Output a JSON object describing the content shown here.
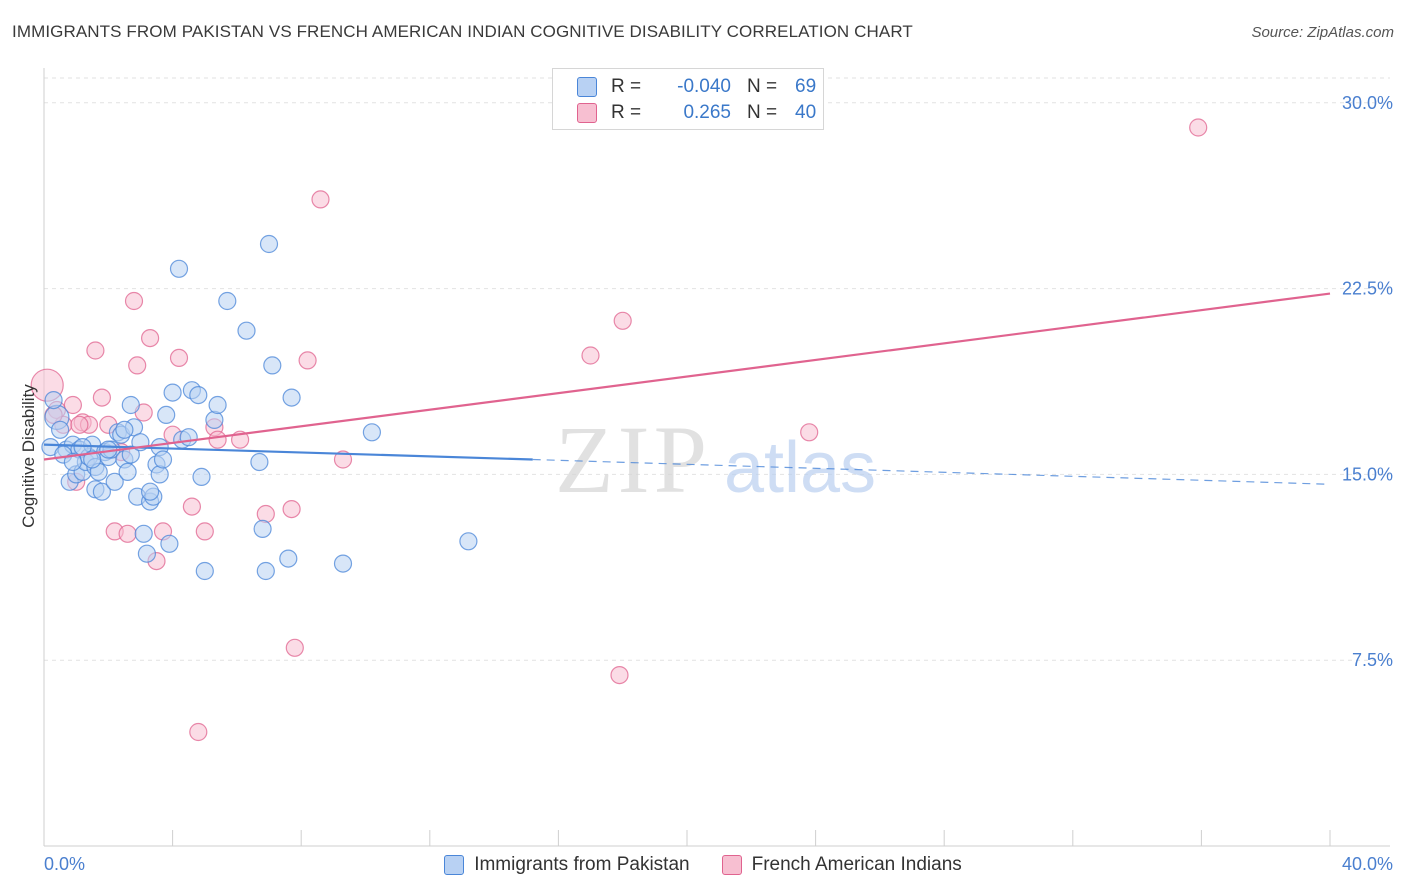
{
  "title": "IMMIGRANTS FROM PAKISTAN VS FRENCH AMERICAN INDIAN COGNITIVE DISABILITY CORRELATION CHART",
  "source": "Source: ZipAtlas.com",
  "watermark": {
    "zip": "ZIP",
    "atlas": "atlas"
  },
  "colors": {
    "blue": "#4a86d8",
    "blue_fill": "#b8d1f3",
    "pink": "#e0638f",
    "pink_fill": "#f7bfd1",
    "axis_label": "#4a7fcf",
    "grid": "#e2e2e2"
  },
  "stats": [
    {
      "r_label": "R =",
      "r_value": "-0.040",
      "n_label": "N =",
      "n_value": "69",
      "series": "blue"
    },
    {
      "r_label": "R =",
      "r_value": "0.265",
      "n_label": "N =",
      "n_value": "40",
      "series": "pink"
    }
  ],
  "legend": [
    {
      "label": "Immigrants from Pakistan",
      "series": "blue"
    },
    {
      "label": "French American Indians",
      "series": "pink"
    }
  ],
  "chart_data": {
    "type": "scatter",
    "title": "IMMIGRANTS FROM PAKISTAN VS FRENCH AMERICAN INDIAN COGNITIVE DISABILITY CORRELATION CHART",
    "xlabel": "",
    "ylabel": "Cognitive Disability",
    "xlim": [
      0,
      40
    ],
    "ylim": [
      0,
      31
    ],
    "x_tick_labels": [
      "0.0%",
      "40.0%"
    ],
    "y_ticks": [
      7.5,
      15.0,
      22.5,
      30.0
    ],
    "y_tick_labels": [
      "7.5%",
      "15.0%",
      "22.5%",
      "30.0%"
    ],
    "grid": true,
    "series": [
      {
        "name": "Immigrants from Pakistan",
        "color": "blue",
        "trend": {
          "x0": 0,
          "y0": 16.2,
          "x1": 15.2,
          "y1": 15.6,
          "dash_x1": 40,
          "dash_y1": 14.6
        },
        "points": [
          [
            0.2,
            16.1
          ],
          [
            0.4,
            17.3
          ],
          [
            0.5,
            16.8
          ],
          [
            0.7,
            16.0
          ],
          [
            0.8,
            14.7
          ],
          [
            0.9,
            16.2
          ],
          [
            1.0,
            15.0
          ],
          [
            1.1,
            16.0
          ],
          [
            1.2,
            15.1
          ],
          [
            1.3,
            15.5
          ],
          [
            1.4,
            15.7
          ],
          [
            1.5,
            16.2
          ],
          [
            1.6,
            15.3
          ],
          [
            1.6,
            14.4
          ],
          [
            1.7,
            15.1
          ],
          [
            1.8,
            14.3
          ],
          [
            1.9,
            15.9
          ],
          [
            2.0,
            15.7
          ],
          [
            2.1,
            16.0
          ],
          [
            2.2,
            14.7
          ],
          [
            2.3,
            16.7
          ],
          [
            2.4,
            16.6
          ],
          [
            2.5,
            15.6
          ],
          [
            2.6,
            15.1
          ],
          [
            2.7,
            15.8
          ],
          [
            2.7,
            17.8
          ],
          [
            2.8,
            16.9
          ],
          [
            2.9,
            14.1
          ],
          [
            3.0,
            16.3
          ],
          [
            3.1,
            12.6
          ],
          [
            3.2,
            11.8
          ],
          [
            3.3,
            13.9
          ],
          [
            3.4,
            14.1
          ],
          [
            3.5,
            15.4
          ],
          [
            3.6,
            15.0
          ],
          [
            3.6,
            16.1
          ],
          [
            3.7,
            15.6
          ],
          [
            3.8,
            17.4
          ],
          [
            3.9,
            12.2
          ],
          [
            4.0,
            18.3
          ],
          [
            4.2,
            23.3
          ],
          [
            4.3,
            16.4
          ],
          [
            4.5,
            16.5
          ],
          [
            4.6,
            18.4
          ],
          [
            4.8,
            18.2
          ],
          [
            4.9,
            14.9
          ],
          [
            5.0,
            11.1
          ],
          [
            5.3,
            17.2
          ],
          [
            5.4,
            17.8
          ],
          [
            5.7,
            22.0
          ],
          [
            6.3,
            20.8
          ],
          [
            6.7,
            15.5
          ],
          [
            6.8,
            12.8
          ],
          [
            6.9,
            11.1
          ],
          [
            7.0,
            24.3
          ],
          [
            7.1,
            19.4
          ],
          [
            7.6,
            11.6
          ],
          [
            7.7,
            18.1
          ],
          [
            9.3,
            11.4
          ],
          [
            10.2,
            16.7
          ],
          [
            13.2,
            12.3
          ],
          [
            0.3,
            18.0
          ],
          [
            0.6,
            15.8
          ],
          [
            1.2,
            16.1
          ],
          [
            2.0,
            16.0
          ],
          [
            3.3,
            14.3
          ],
          [
            1.5,
            15.6
          ],
          [
            0.9,
            15.5
          ],
          [
            2.5,
            16.8
          ]
        ]
      },
      {
        "name": "French American Indians",
        "color": "pink",
        "trend": {
          "x0": 0,
          "y0": 15.6,
          "x1": 40,
          "y1": 22.3
        },
        "points": [
          [
            0.1,
            18.6
          ],
          [
            0.4,
            17.6
          ],
          [
            0.6,
            17.0
          ],
          [
            0.9,
            17.8
          ],
          [
            1.0,
            14.7
          ],
          [
            1.2,
            17.1
          ],
          [
            1.4,
            17.0
          ],
          [
            1.6,
            20.0
          ],
          [
            1.8,
            18.1
          ],
          [
            2.0,
            17.0
          ],
          [
            2.2,
            12.7
          ],
          [
            2.4,
            15.9
          ],
          [
            2.6,
            12.6
          ],
          [
            2.8,
            22.0
          ],
          [
            2.9,
            19.4
          ],
          [
            3.1,
            17.5
          ],
          [
            3.3,
            20.5
          ],
          [
            3.5,
            11.5
          ],
          [
            3.7,
            12.7
          ],
          [
            4.0,
            16.6
          ],
          [
            4.2,
            19.7
          ],
          [
            4.6,
            13.7
          ],
          [
            4.8,
            4.6
          ],
          [
            5.0,
            12.7
          ],
          [
            5.3,
            16.9
          ],
          [
            5.4,
            16.4
          ],
          [
            6.1,
            16.4
          ],
          [
            6.9,
            13.4
          ],
          [
            7.7,
            13.6
          ],
          [
            7.8,
            8.0
          ],
          [
            8.2,
            19.6
          ],
          [
            8.6,
            26.1
          ],
          [
            9.3,
            15.6
          ],
          [
            17.0,
            19.8
          ],
          [
            17.9,
            6.9
          ],
          [
            18.0,
            21.2
          ],
          [
            23.8,
            16.7
          ],
          [
            35.9,
            29.0
          ],
          [
            0.3,
            17.4
          ],
          [
            1.1,
            17.0
          ]
        ]
      }
    ]
  }
}
